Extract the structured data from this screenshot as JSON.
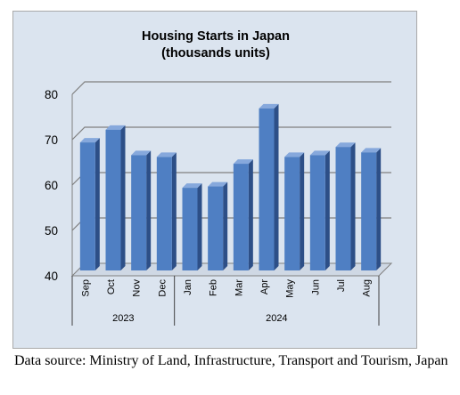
{
  "chart_data": {
    "type": "bar",
    "title": [
      "Housing Starts in Japan",
      "(thousands units)"
    ],
    "categories": [
      "Sep",
      "Oct",
      "Nov",
      "Dec",
      "Jan",
      "Feb",
      "Mar",
      "Apr",
      "May",
      "Jun",
      "Jul",
      "Aug"
    ],
    "category_groups": [
      {
        "label": "2023",
        "count": 4
      },
      {
        "label": "2024",
        "count": 8
      }
    ],
    "values": [
      69,
      71.8,
      66.2,
      65.8,
      59,
      59.3,
      64.3,
      76.5,
      65.8,
      66.2,
      68,
      66.8
    ],
    "ylim": [
      40,
      80
    ],
    "yticks": [
      40,
      50,
      60,
      70,
      80
    ],
    "xlabel": "",
    "ylabel": "",
    "grid": true,
    "style": "3d",
    "colors": {
      "bar_front": "#4f7fc3",
      "bar_side": "#2d4f87",
      "bar_top": "#86a8dc",
      "plot_bg": "#dbe4ef"
    }
  },
  "source_note": "Data source: Ministry of Land, Infrastructure, Transport and Tourism, Japan"
}
